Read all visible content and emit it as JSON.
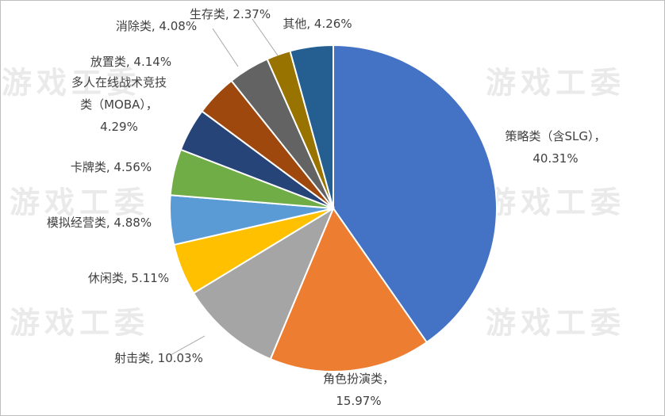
{
  "chart_data": {
    "type": "pie",
    "watermark": "游戏工委",
    "values": [
      40.31,
      15.97,
      10.03,
      5.11,
      4.88,
      4.56,
      4.29,
      4.14,
      4.08,
      2.37,
      4.26
    ],
    "value_labels": [
      [
        "策略类（含SLG），",
        "40.31%"
      ],
      [
        "角色扮演类，",
        "15.97%"
      ],
      [
        "射击类, 10.03%"
      ],
      [
        "休闲类, 5.11%"
      ],
      [
        "模拟经营类, 4.88%"
      ],
      [
        "卡牌类, 4.56%"
      ],
      [
        "多人在线战术竞技",
        "类（MOBA），",
        "4.29%"
      ],
      [
        "放置类, 4.14%"
      ],
      [
        "消除类, 4.08%"
      ],
      [
        "生存类, 2.37%"
      ],
      [
        "其他, 4.26%"
      ]
    ],
    "colors": [
      "#4472c4",
      "#ed7d31",
      "#a5a5a5",
      "#ffc000",
      "#5b9bd5",
      "#70ad47",
      "#264478",
      "#9e480e",
      "#636363",
      "#997300",
      "#255e91"
    ]
  }
}
